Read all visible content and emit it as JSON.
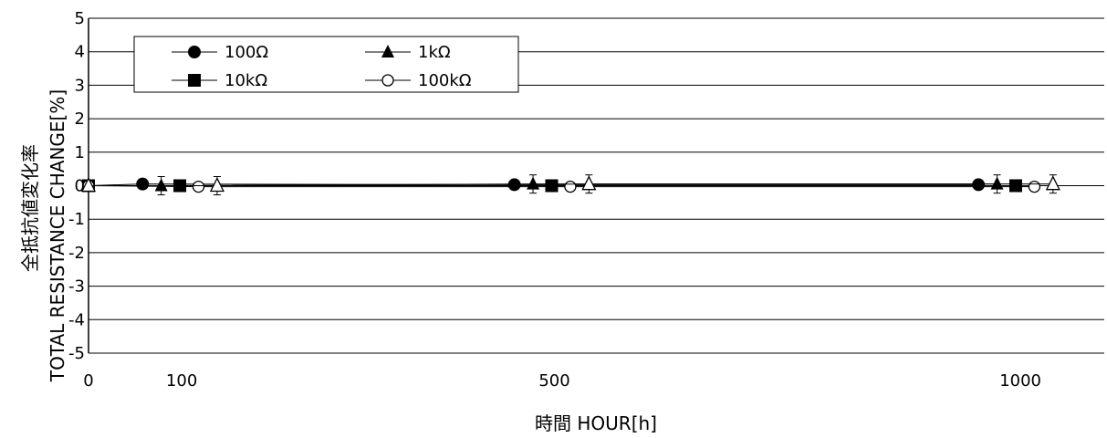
{
  "chart_data": {
    "type": "scatter",
    "title": "",
    "xlabel": "時間 HOUR[h]",
    "ylabel_line1": "全抵抗値変化率",
    "ylabel_line2": "TOTAL RESISTANCE CHANGE[%]",
    "xlim": [
      0,
      1090
    ],
    "ylim": [
      -5,
      5
    ],
    "x_ticks": [
      {
        "value": 0,
        "label": "0"
      },
      {
        "value": 100,
        "label": "100"
      },
      {
        "value": 500,
        "label": "500"
      },
      {
        "value": 1000,
        "label": "1000"
      }
    ],
    "y_ticks": [
      -5,
      -4,
      -3,
      -2,
      -1,
      0,
      1,
      2,
      3,
      4,
      5
    ],
    "grid": true,
    "legend_position": "top-left",
    "series": [
      {
        "name": "100Ω",
        "marker": "filled-circle",
        "points": [
          {
            "x": 0,
            "y": 0
          },
          {
            "x": 58,
            "y": 0.05
          },
          {
            "x": 457,
            "y": 0.03
          },
          {
            "x": 955,
            "y": 0.03
          }
        ]
      },
      {
        "name": "1kΩ",
        "marker": "filled-triangle",
        "points": [
          {
            "x": 0,
            "y": 0
          },
          {
            "x": 78,
            "y": 0
          },
          {
            "x": 477,
            "y": 0.05
          },
          {
            "x": 975,
            "y": 0.05
          }
        ]
      },
      {
        "name": "10kΩ",
        "marker": "filled-square",
        "points": [
          {
            "x": 0,
            "y": 0
          },
          {
            "x": 98,
            "y": 0
          },
          {
            "x": 497,
            "y": 0
          },
          {
            "x": 995,
            "y": 0
          }
        ]
      },
      {
        "name": "100kΩ",
        "marker": "open-circle",
        "points": [
          {
            "x": 0,
            "y": 0
          },
          {
            "x": 118,
            "y": -0.03
          },
          {
            "x": 517,
            "y": -0.03
          },
          {
            "x": 1015,
            "y": -0.03
          }
        ]
      }
    ],
    "extra_series": [
      {
        "marker": "open-triangle",
        "points": [
          {
            "x": 0,
            "y": 0
          },
          {
            "x": 138,
            "y": 0
          },
          {
            "x": 537,
            "y": 0.05
          },
          {
            "x": 1035,
            "y": 0.05
          }
        ]
      }
    ]
  }
}
